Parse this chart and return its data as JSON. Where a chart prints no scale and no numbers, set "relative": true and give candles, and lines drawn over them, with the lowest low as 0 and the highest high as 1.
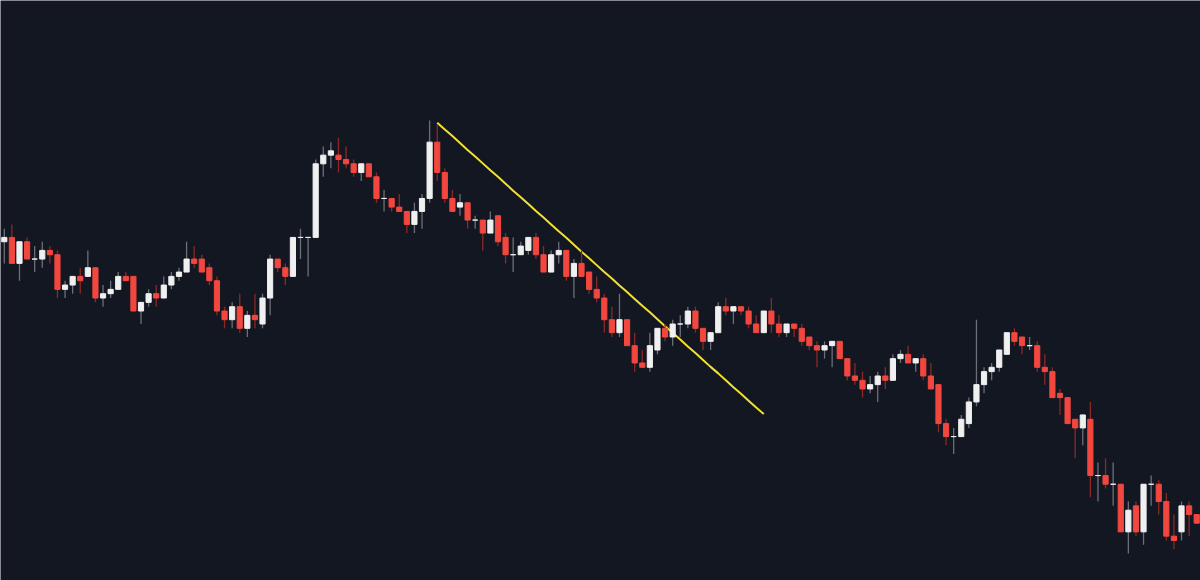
{
  "chart_data": {
    "type": "candlestick",
    "relative": true,
    "categories": [
      null,
      null,
      null,
      null,
      null,
      null,
      null,
      null,
      null,
      null,
      null,
      null,
      null,
      null,
      null,
      null,
      null,
      null,
      null,
      null,
      null,
      null,
      null,
      null,
      null,
      null,
      null,
      null,
      null,
      null,
      null,
      null,
      null,
      null,
      null,
      null,
      null,
      null,
      null,
      null,
      null,
      null,
      null,
      null,
      null,
      null,
      null,
      null,
      null,
      null,
      null,
      null,
      null,
      null,
      null,
      null,
      null,
      null,
      null,
      null,
      null,
      null,
      null,
      null,
      null,
      null,
      null,
      null,
      null,
      null,
      null,
      null,
      null,
      null,
      null,
      null,
      null,
      null,
      null,
      null,
      null,
      null,
      null,
      null,
      null,
      null,
      null,
      null,
      null,
      null,
      null,
      null,
      null,
      null,
      null,
      null,
      null,
      null,
      null,
      null,
      null,
      null,
      null,
      null,
      null,
      null,
      null,
      null,
      null,
      null,
      null,
      null,
      null,
      null,
      null,
      null,
      null,
      null,
      null,
      null,
      null,
      null,
      null,
      null,
      null,
      null,
      null,
      null,
      null,
      null,
      null,
      null,
      null,
      null,
      null,
      null,
      null,
      null,
      null,
      null,
      null,
      null,
      null,
      null,
      null,
      null,
      null,
      null,
      null,
      null,
      null,
      null,
      null,
      null,
      null,
      null,
      null,
      null
    ],
    "ohlc": [
      [
        0.72,
        0.75,
        0.67,
        0.73
      ],
      [
        0.73,
        0.76,
        0.67,
        0.67
      ],
      [
        0.67,
        0.72,
        0.63,
        0.72
      ],
      [
        0.72,
        0.73,
        0.68,
        0.68
      ],
      [
        0.68,
        0.71,
        0.65,
        0.68
      ],
      [
        0.68,
        0.72,
        0.66,
        0.7
      ],
      [
        0.7,
        0.71,
        0.67,
        0.69
      ],
      [
        0.69,
        0.7,
        0.59,
        0.61
      ],
      [
        0.61,
        0.63,
        0.59,
        0.62
      ],
      [
        0.62,
        0.64,
        0.6,
        0.64
      ],
      [
        0.64,
        0.66,
        0.6,
        0.63
      ],
      [
        0.64,
        0.7,
        0.64,
        0.66
      ],
      [
        0.66,
        0.66,
        0.58,
        0.59
      ],
      [
        0.59,
        0.62,
        0.57,
        0.6
      ],
      [
        0.6,
        0.63,
        0.59,
        0.61
      ],
      [
        0.61,
        0.65,
        0.61,
        0.64
      ],
      [
        0.64,
        0.65,
        0.63,
        0.63
      ],
      [
        0.64,
        0.64,
        0.56,
        0.56
      ],
      [
        0.56,
        0.58,
        0.53,
        0.58
      ],
      [
        0.58,
        0.61,
        0.57,
        0.6
      ],
      [
        0.6,
        0.62,
        0.57,
        0.59
      ],
      [
        0.59,
        0.64,
        0.59,
        0.62
      ],
      [
        0.62,
        0.65,
        0.61,
        0.64
      ],
      [
        0.64,
        0.66,
        0.63,
        0.65
      ],
      [
        0.65,
        0.72,
        0.65,
        0.68
      ],
      [
        0.68,
        0.71,
        0.66,
        0.67
      ],
      [
        0.68,
        0.69,
        0.65,
        0.65
      ],
      [
        0.66,
        0.67,
        0.62,
        0.63
      ],
      [
        0.63,
        0.64,
        0.55,
        0.56
      ],
      [
        0.56,
        0.57,
        0.52,
        0.54
      ],
      [
        0.54,
        0.58,
        0.52,
        0.57
      ],
      [
        0.57,
        0.6,
        0.51,
        0.52
      ],
      [
        0.52,
        0.56,
        0.5,
        0.55
      ],
      [
        0.55,
        0.6,
        0.52,
        0.54
      ],
      [
        0.53,
        0.6,
        0.52,
        0.59
      ],
      [
        0.59,
        0.69,
        0.55,
        0.68
      ],
      [
        0.68,
        0.68,
        0.65,
        0.66
      ],
      [
        0.66,
        0.67,
        0.62,
        0.64
      ],
      [
        0.64,
        0.73,
        0.64,
        0.73
      ],
      [
        0.73,
        0.75,
        0.68,
        0.73
      ],
      [
        0.73,
        0.73,
        0.64,
        0.73
      ],
      [
        0.73,
        0.91,
        0.73,
        0.9
      ],
      [
        0.9,
        0.94,
        0.87,
        0.92
      ],
      [
        0.92,
        0.95,
        0.89,
        0.93
      ],
      [
        0.92,
        0.96,
        0.88,
        0.91
      ],
      [
        0.91,
        0.94,
        0.89,
        0.9
      ],
      [
        0.9,
        0.91,
        0.87,
        0.88
      ],
      [
        0.88,
        0.9,
        0.86,
        0.9
      ],
      [
        0.9,
        0.9,
        0.87,
        0.87
      ],
      [
        0.87,
        0.88,
        0.81,
        0.82
      ],
      [
        0.82,
        0.84,
        0.79,
        0.82
      ],
      [
        0.82,
        0.82,
        0.79,
        0.8
      ],
      [
        0.8,
        0.83,
        0.79,
        0.79
      ],
      [
        0.79,
        0.79,
        0.74,
        0.76
      ],
      [
        0.76,
        0.81,
        0.74,
        0.79
      ],
      [
        0.79,
        0.83,
        0.75,
        0.82
      ],
      [
        0.82,
        1.0,
        0.81,
        0.95
      ],
      [
        0.95,
        0.99,
        0.86,
        0.88
      ],
      [
        0.88,
        0.89,
        0.81,
        0.82
      ],
      [
        0.82,
        0.84,
        0.79,
        0.79
      ],
      [
        0.8,
        0.83,
        0.78,
        0.81
      ],
      [
        0.81,
        0.81,
        0.75,
        0.77
      ],
      [
        0.77,
        0.78,
        0.75,
        0.77
      ],
      [
        0.77,
        0.77,
        0.7,
        0.74
      ],
      [
        0.74,
        0.79,
        0.74,
        0.77
      ],
      [
        0.78,
        0.78,
        0.71,
        0.72
      ],
      [
        0.73,
        0.74,
        0.67,
        0.69
      ],
      [
        0.69,
        0.73,
        0.65,
        0.69
      ],
      [
        0.69,
        0.72,
        0.69,
        0.71
      ],
      [
        0.7,
        0.73,
        0.69,
        0.73
      ],
      [
        0.73,
        0.74,
        0.68,
        0.69
      ],
      [
        0.69,
        0.71,
        0.65,
        0.65
      ],
      [
        0.65,
        0.7,
        0.65,
        0.69
      ],
      [
        0.69,
        0.72,
        0.67,
        0.7
      ],
      [
        0.7,
        0.7,
        0.63,
        0.64
      ],
      [
        0.64,
        0.68,
        0.59,
        0.67
      ],
      [
        0.67,
        0.7,
        0.64,
        0.64
      ],
      [
        0.65,
        0.65,
        0.6,
        0.61
      ],
      [
        0.61,
        0.64,
        0.58,
        0.59
      ],
      [
        0.59,
        0.6,
        0.51,
        0.54
      ],
      [
        0.54,
        0.57,
        0.5,
        0.51
      ],
      [
        0.51,
        0.6,
        0.5,
        0.54
      ],
      [
        0.54,
        0.54,
        0.48,
        0.48
      ],
      [
        0.48,
        0.51,
        0.42,
        0.44
      ],
      [
        0.44,
        0.47,
        0.43,
        0.43
      ],
      [
        0.43,
        0.51,
        0.42,
        0.48
      ],
      [
        0.47,
        0.52,
        0.46,
        0.52
      ],
      [
        0.52,
        0.53,
        0.49,
        0.5
      ],
      [
        0.5,
        0.54,
        0.48,
        0.53
      ],
      [
        0.53,
        0.55,
        0.5,
        0.53
      ],
      [
        0.53,
        0.57,
        0.52,
        0.56
      ],
      [
        0.56,
        0.57,
        0.51,
        0.52
      ],
      [
        0.52,
        0.52,
        0.47,
        0.49
      ],
      [
        0.49,
        0.51,
        0.47,
        0.51
      ],
      [
        0.51,
        0.58,
        0.51,
        0.57
      ],
      [
        0.57,
        0.59,
        0.55,
        0.56
      ],
      [
        0.56,
        0.57,
        0.53,
        0.57
      ],
      [
        0.57,
        0.57,
        0.55,
        0.56
      ],
      [
        0.56,
        0.57,
        0.52,
        0.53
      ],
      [
        0.53,
        0.55,
        0.51,
        0.51
      ],
      [
        0.51,
        0.56,
        0.51,
        0.56
      ],
      [
        0.56,
        0.59,
        0.51,
        0.53
      ],
      [
        0.53,
        0.55,
        0.5,
        0.51
      ],
      [
        0.51,
        0.53,
        0.5,
        0.53
      ],
      [
        0.53,
        0.53,
        0.5,
        0.52
      ],
      [
        0.52,
        0.53,
        0.48,
        0.49
      ],
      [
        0.5,
        0.5,
        0.47,
        0.48
      ],
      [
        0.48,
        0.49,
        0.43,
        0.47
      ],
      [
        0.47,
        0.49,
        0.45,
        0.48
      ],
      [
        0.48,
        0.49,
        0.43,
        0.49
      ],
      [
        0.49,
        0.49,
        0.45,
        0.45
      ],
      [
        0.45,
        0.45,
        0.4,
        0.41
      ],
      [
        0.41,
        0.44,
        0.39,
        0.4
      ],
      [
        0.4,
        0.42,
        0.36,
        0.38
      ],
      [
        0.38,
        0.41,
        0.37,
        0.39
      ],
      [
        0.39,
        0.42,
        0.35,
        0.41
      ],
      [
        0.41,
        0.43,
        0.38,
        0.4
      ],
      [
        0.4,
        0.46,
        0.4,
        0.45
      ],
      [
        0.45,
        0.47,
        0.44,
        0.46
      ],
      [
        0.46,
        0.48,
        0.44,
        0.44
      ],
      [
        0.44,
        0.45,
        0.42,
        0.45
      ],
      [
        0.45,
        0.46,
        0.4,
        0.41
      ],
      [
        0.41,
        0.44,
        0.38,
        0.38
      ],
      [
        0.39,
        0.39,
        0.28,
        0.3
      ],
      [
        0.3,
        0.31,
        0.25,
        0.27
      ],
      [
        0.27,
        0.29,
        0.23,
        0.27
      ],
      [
        0.27,
        0.32,
        0.27,
        0.31
      ],
      [
        0.3,
        0.36,
        0.29,
        0.35
      ],
      [
        0.35,
        0.54,
        0.34,
        0.39
      ],
      [
        0.39,
        0.43,
        0.37,
        0.42
      ],
      [
        0.42,
        0.44,
        0.4,
        0.43
      ],
      [
        0.43,
        0.47,
        0.42,
        0.47
      ],
      [
        0.46,
        0.51,
        0.46,
        0.51
      ],
      [
        0.51,
        0.52,
        0.48,
        0.49
      ],
      [
        0.5,
        0.5,
        0.46,
        0.48
      ],
      [
        0.48,
        0.5,
        0.47,
        0.48
      ],
      [
        0.48,
        0.49,
        0.42,
        0.43
      ],
      [
        0.43,
        0.46,
        0.39,
        0.42
      ],
      [
        0.42,
        0.43,
        0.36,
        0.36
      ],
      [
        0.37,
        0.38,
        0.32,
        0.36
      ],
      [
        0.36,
        0.36,
        0.3,
        0.3
      ],
      [
        0.31,
        0.31,
        0.22,
        0.29
      ],
      [
        0.29,
        0.32,
        0.25,
        0.32
      ],
      [
        0.31,
        0.35,
        0.13,
        0.18
      ],
      [
        0.18,
        0.21,
        0.12,
        0.18
      ],
      [
        0.18,
        0.22,
        0.15,
        0.16
      ],
      [
        0.16,
        0.21,
        0.11,
        0.16
      ],
      [
        0.16,
        0.16,
        0.05,
        0.05
      ],
      [
        0.05,
        0.12,
        0.0,
        0.1
      ],
      [
        0.11,
        0.12,
        0.04,
        0.05
      ],
      [
        0.05,
        0.16,
        0.02,
        0.16
      ],
      [
        0.16,
        0.18,
        0.11,
        0.16
      ],
      [
        0.16,
        0.17,
        0.09,
        0.12
      ],
      [
        0.12,
        0.14,
        0.03,
        0.04
      ],
      [
        0.04,
        0.09,
        0.01,
        0.03
      ],
      [
        0.05,
        0.12,
        0.03,
        0.11
      ],
      [
        0.11,
        0.12,
        0.04,
        0.09
      ],
      [
        0.09,
        0.09,
        0.07,
        0.07
      ]
    ],
    "series": [
      {
        "type": "line",
        "color": "#f2e033",
        "values": [
          null,
          null,
          null,
          null,
          null,
          null,
          null,
          null,
          null,
          null,
          null,
          null,
          null,
          null,
          null,
          null,
          null,
          null,
          null,
          null,
          null,
          null,
          null,
          null,
          null,
          null,
          null,
          null,
          null,
          null,
          null,
          null,
          null,
          null,
          null,
          null,
          null,
          null,
          null,
          null,
          null,
          null,
          null,
          null,
          null,
          null,
          null,
          null,
          null,
          null,
          null,
          null,
          null,
          null,
          null,
          null,
          null,
          0.995,
          0.979,
          0.964,
          0.948,
          0.932,
          0.917,
          0.901,
          0.885,
          0.87,
          0.854,
          0.838,
          0.823,
          0.807,
          0.791,
          0.776,
          0.76,
          0.744,
          0.729,
          0.713,
          0.697,
          0.682,
          0.666,
          0.65,
          0.635,
          0.619,
          0.604,
          0.588,
          0.572,
          0.557,
          0.541,
          0.525,
          0.51,
          0.494,
          0.478,
          0.463,
          0.447,
          0.431,
          0.416,
          0.4,
          0.384,
          0.369,
          0.353,
          0.337,
          0.322,
          null,
          null,
          null,
          null,
          null,
          null,
          null,
          null,
          null,
          null,
          null,
          null,
          null,
          null,
          null,
          null,
          null,
          null,
          null,
          null,
          null,
          null,
          null,
          null,
          null,
          null,
          null,
          null,
          null,
          null,
          null,
          null,
          null,
          null,
          null,
          null,
          null,
          null,
          null,
          null,
          null,
          null,
          null,
          null,
          null,
          null,
          null,
          null,
          null,
          null,
          null,
          null,
          null,
          null,
          null,
          null,
          null
        ]
      }
    ]
  }
}
